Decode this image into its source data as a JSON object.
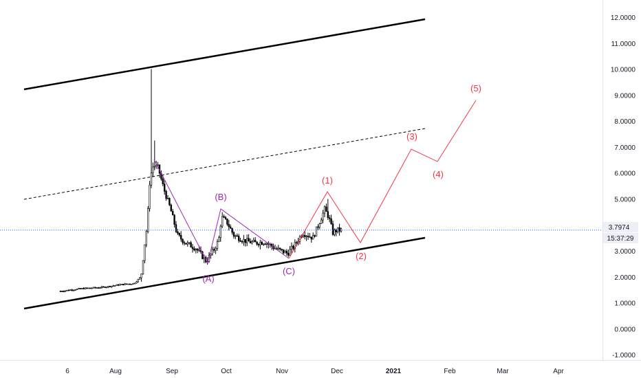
{
  "chart_data": {
    "type": "candlestick",
    "price_scale": {
      "ticks": [
        "12.0000",
        "11.0000",
        "10.0000",
        "9.0000",
        "8.0000",
        "7.0000",
        "6.0000",
        "5.0000",
        "4.0000",
        "3.0000",
        "2.0000",
        "1.0000",
        "0.0000",
        "-1.0000"
      ],
      "values": [
        12,
        11,
        10,
        9,
        8,
        7,
        6,
        5,
        4,
        3,
        2,
        1,
        0,
        -1
      ],
      "ylim": [
        -1.3,
        12.3
      ]
    },
    "time_scale": {
      "ticks": [
        {
          "label": "6",
          "bold": false
        },
        {
          "label": "Aug",
          "bold": false
        },
        {
          "label": "Sep",
          "bold": false
        },
        {
          "label": "Oct",
          "bold": false
        },
        {
          "label": "Nov",
          "bold": false
        },
        {
          "label": "Dec",
          "bold": false
        },
        {
          "label": "2021",
          "bold": true
        },
        {
          "label": "Feb",
          "bold": false
        },
        {
          "label": "Mar",
          "bold": false
        },
        {
          "label": "Apr",
          "bold": false
        }
      ]
    },
    "current_price": "3.7974",
    "countdown": "15:37:29",
    "wave_labels_abc": [
      "(A)",
      "(B)",
      "(C)"
    ],
    "wave_labels_impulse": [
      "(1)",
      "(2)",
      "(3)",
      "(4)",
      "(5)"
    ],
    "colors": {
      "up": "#ffffff",
      "down": "#000000",
      "abc": "#9c27b0",
      "impulse": "#f23645",
      "channel": "#000000",
      "price_line": "#2962ff"
    }
  }
}
